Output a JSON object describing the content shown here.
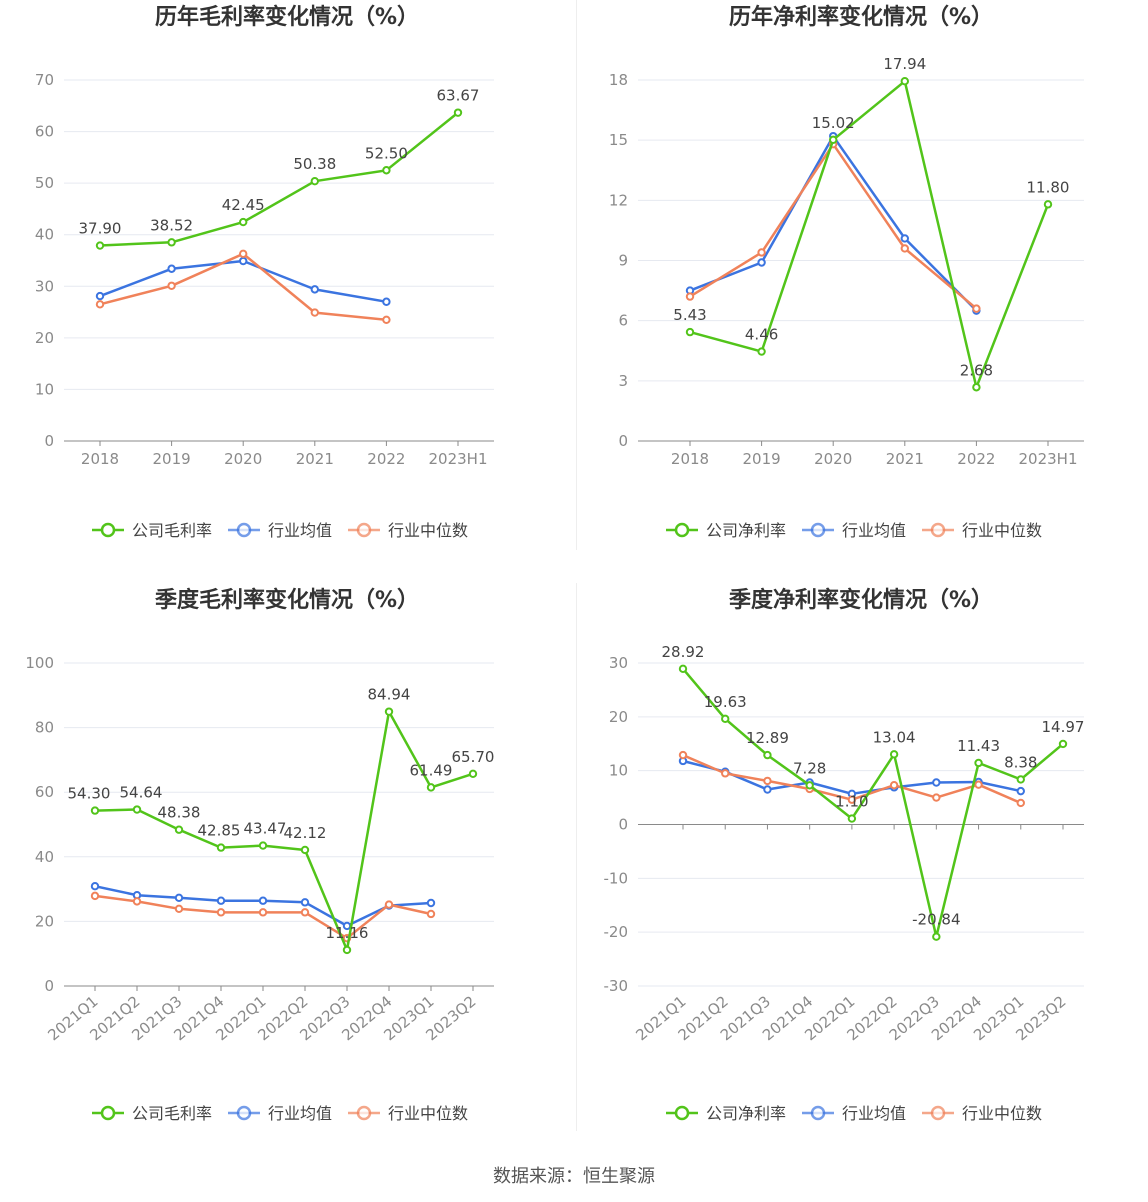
{
  "source": "数据来源：恒生聚源",
  "colors": {
    "company": "#52c41a",
    "avg": "#3b74e0",
    "median": "#f0825a"
  },
  "chart_data": [
    {
      "type": "line",
      "title": "历年毛利率变化情况（%）",
      "categories": [
        "2018",
        "2019",
        "2020",
        "2021",
        "2022",
        "2023H1"
      ],
      "ylim": [
        0,
        70
      ],
      "yticks": [
        0,
        10,
        20,
        30,
        40,
        50,
        60,
        70
      ],
      "ytick_labels": [
        "0",
        "10",
        "20",
        "30",
        "40",
        "50",
        "60",
        "70"
      ],
      "rotate_x": false,
      "series": [
        {
          "name": "公司毛利率",
          "key": "company",
          "values": [
            37.9,
            38.52,
            42.45,
            50.38,
            52.5,
            63.67
          ],
          "labels": [
            "37.90",
            "38.52",
            "42.45",
            "50.38",
            "52.50",
            "63.67"
          ]
        },
        {
          "name": "行业均值",
          "key": "avg",
          "values": [
            28.1,
            33.4,
            34.9,
            29.4,
            27.0,
            null
          ]
        },
        {
          "name": "行业中位数",
          "key": "median",
          "values": [
            26.5,
            30.1,
            36.3,
            24.9,
            23.5,
            null
          ]
        }
      ]
    },
    {
      "type": "line",
      "title": "历年净利率变化情况（%）",
      "categories": [
        "2018",
        "2019",
        "2020",
        "2021",
        "2022",
        "2023H1"
      ],
      "ylim": [
        0,
        18
      ],
      "yticks": [
        0,
        3,
        6,
        9,
        12,
        15,
        18
      ],
      "ytick_labels": [
        "0",
        "3",
        "6",
        "9",
        "12",
        "15",
        "18"
      ],
      "rotate_x": false,
      "series": [
        {
          "name": "公司净利率",
          "key": "company",
          "values": [
            5.43,
            4.46,
            15.02,
            17.94,
            2.68,
            11.8
          ],
          "labels": [
            "5.43",
            "4.46",
            "15.02",
            "17.94",
            "2.68",
            "11.80"
          ]
        },
        {
          "name": "行业均值",
          "key": "avg",
          "values": [
            7.5,
            8.9,
            15.2,
            10.1,
            6.5,
            null
          ]
        },
        {
          "name": "行业中位数",
          "key": "median",
          "values": [
            7.2,
            9.4,
            14.8,
            9.6,
            6.6,
            null
          ]
        }
      ]
    },
    {
      "type": "line",
      "title": "季度毛利率变化情况（%）",
      "categories": [
        "2021Q1",
        "2021Q2",
        "2021Q3",
        "2021Q4",
        "2022Q1",
        "2022Q2",
        "2022Q3",
        "2022Q4",
        "2023Q1",
        "2023Q2"
      ],
      "ylim": [
        0,
        100
      ],
      "yticks": [
        0,
        20,
        40,
        60,
        80,
        100
      ],
      "ytick_labels": [
        "0",
        "20",
        "40",
        "60",
        "80",
        "100"
      ],
      "rotate_x": true,
      "series": [
        {
          "name": "公司毛利率",
          "key": "company",
          "values": [
            54.3,
            54.64,
            48.38,
            42.85,
            43.47,
            42.12,
            11.16,
            84.94,
            61.49,
            65.7
          ],
          "labels": [
            "54.30",
            "54.64",
            "48.38",
            "42.85",
            "43.47",
            "42.12",
            "11.16",
            "84.94",
            "61.49",
            "65.70"
          ]
        },
        {
          "name": "行业均值",
          "key": "avg",
          "values": [
            30.9,
            28.1,
            27.3,
            26.4,
            26.4,
            25.9,
            18.6,
            24.9,
            25.7,
            null
          ]
        },
        {
          "name": "行业中位数",
          "key": "median",
          "values": [
            27.9,
            26.2,
            23.9,
            22.8,
            22.8,
            22.8,
            14.8,
            25.2,
            22.3,
            null
          ]
        }
      ]
    },
    {
      "type": "line",
      "title": "季度净利率变化情况（%）",
      "categories": [
        "2021Q1",
        "2021Q2",
        "2021Q3",
        "2021Q4",
        "2022Q1",
        "2022Q2",
        "2022Q3",
        "2022Q4",
        "2023Q1",
        "2023Q2"
      ],
      "ylim": [
        -30,
        30
      ],
      "yticks": [
        -30,
        -20,
        -10,
        0,
        10,
        20,
        30
      ],
      "ytick_labels": [
        "-30",
        "-20",
        "-10",
        "0",
        "10",
        "20",
        "30"
      ],
      "rotate_x": true,
      "series": [
        {
          "name": "公司净利率",
          "key": "company",
          "values": [
            28.92,
            19.63,
            12.89,
            7.28,
            1.1,
            13.04,
            -20.84,
            11.43,
            8.38,
            14.97
          ],
          "labels": [
            "28.92",
            "19.63",
            "12.89",
            "7.28",
            "1.10",
            "13.04",
            "-20.84",
            "11.43",
            "8.38",
            "14.97"
          ]
        },
        {
          "name": "行业均值",
          "key": "avg",
          "values": [
            11.8,
            9.8,
            6.5,
            7.8,
            5.7,
            6.9,
            7.8,
            7.9,
            6.2,
            null
          ]
        },
        {
          "name": "行业中位数",
          "key": "median",
          "values": [
            12.9,
            9.5,
            8.1,
            6.6,
            4.6,
            7.3,
            5.0,
            7.4,
            4.0,
            null
          ]
        }
      ]
    }
  ]
}
